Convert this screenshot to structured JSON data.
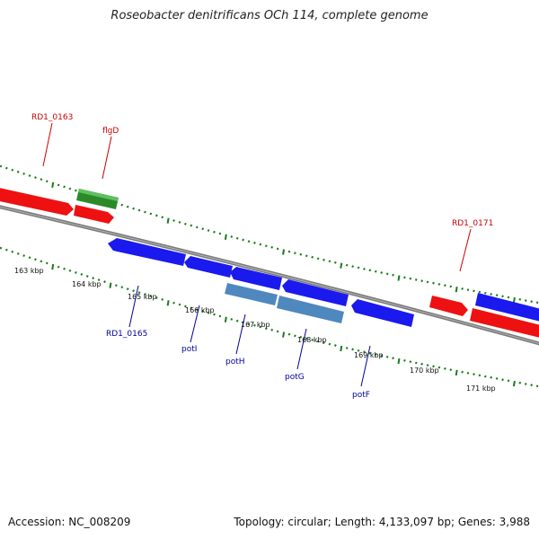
{
  "title": "Roseobacter denitrificans OCh 114, complete genome",
  "footer": {
    "accession": "Accession: NC_008209",
    "summary": "Topology: circular; Length: 4,133,097 bp; Genes: 3,988"
  },
  "colors": {
    "forward_gene": "#ee1111",
    "reverse_gene": "#1a1aee",
    "rna_gene": "#2a8a2a",
    "operon_gene": "#4f88bf",
    "backbone": "#7a7a7a",
    "tick": "#1a7a1a",
    "label_red": "#cc0000",
    "label_blue": "#000099"
  },
  "scale_labels": [
    "163 kbp",
    "164 kbp",
    "165 kbp",
    "166 kbp",
    "167 kbp",
    "168 kbp",
    "169 kbp",
    "170 kbp",
    "171 kbp"
  ],
  "gene_labels": {
    "top": [
      {
        "text": "RD1_0163",
        "color": "red"
      },
      {
        "text": "flgD",
        "color": "red"
      },
      {
        "text": "RD1_0171",
        "color": "red"
      }
    ],
    "bottom": [
      {
        "text": "RD1_0165",
        "color": "blue"
      },
      {
        "text": "potI",
        "color": "blue"
      },
      {
        "text": "potH",
        "color": "blue"
      },
      {
        "text": "potG",
        "color": "blue"
      },
      {
        "text": "potF",
        "color": "blue"
      }
    ]
  }
}
